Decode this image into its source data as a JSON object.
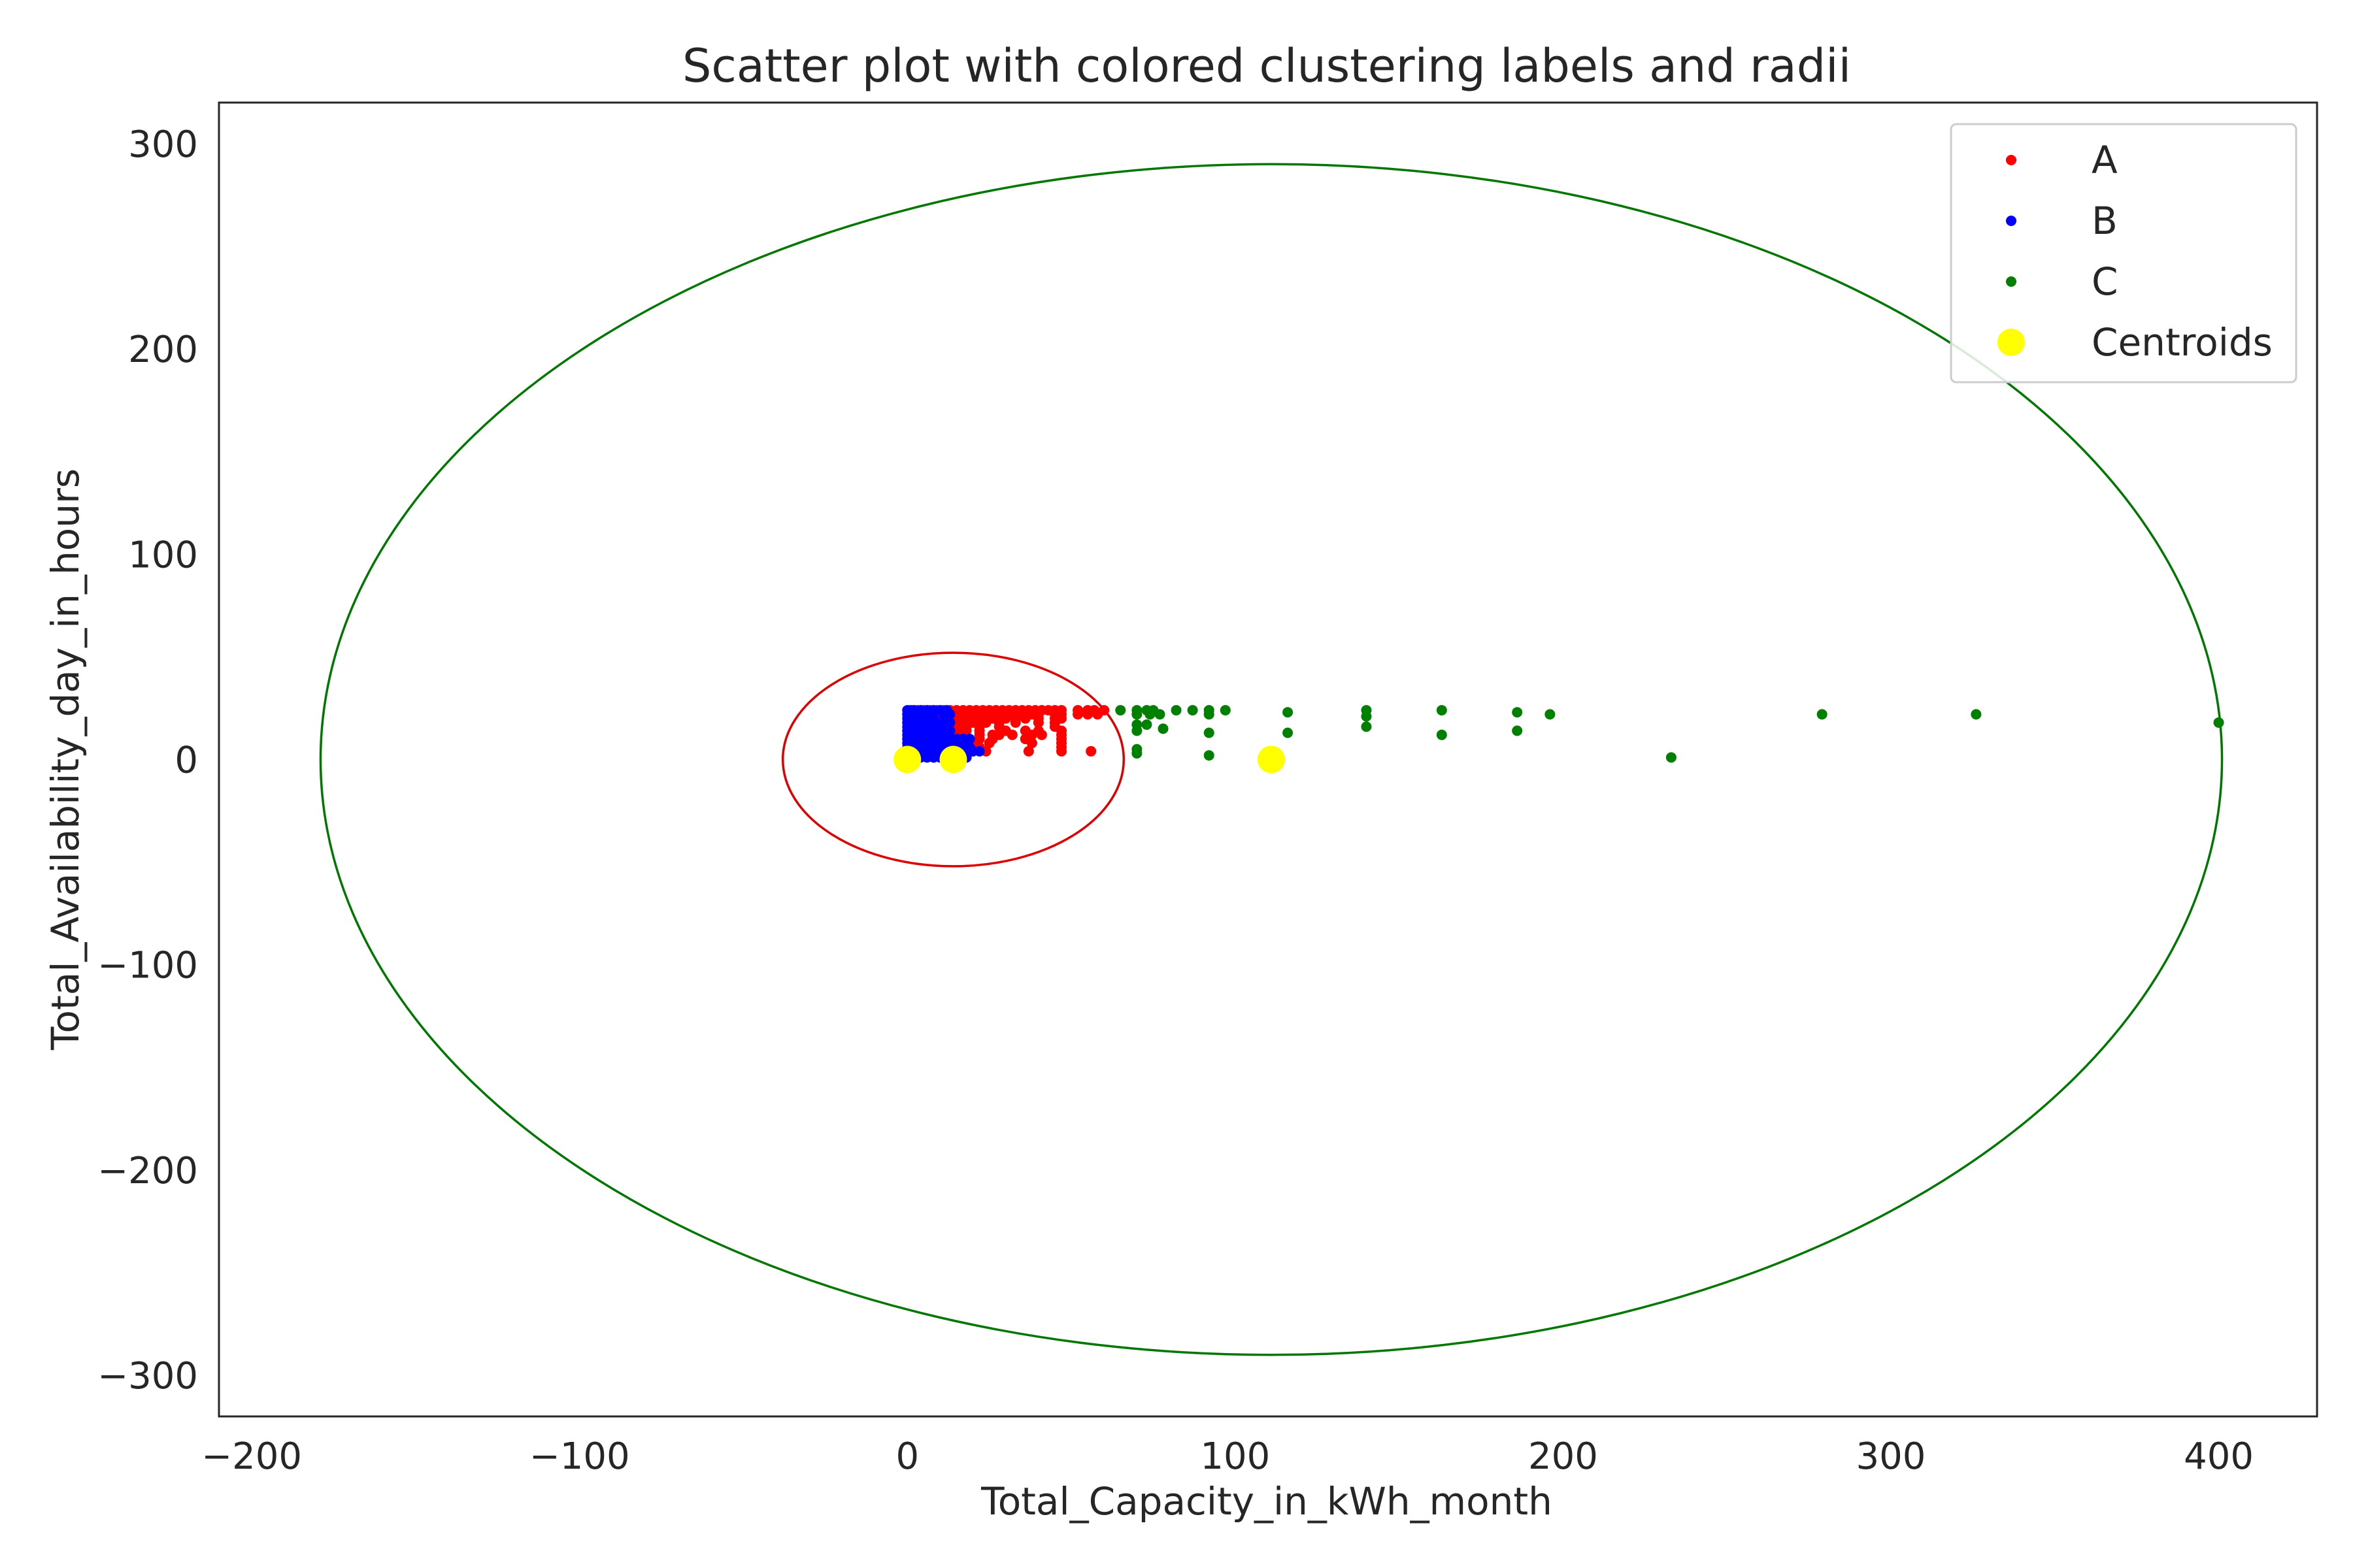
{
  "chart_data": {
    "type": "scatter",
    "title": "Scatter plot with colored clustering labels and radii",
    "xlabel": "Total_Capacity_in_kWh_month",
    "ylabel": "Total_Availability_day_in_hours",
    "xlim": [
      -210,
      430
    ],
    "ylim": [
      -320,
      320
    ],
    "xticks": [
      -200,
      -100,
      0,
      100,
      200,
      300,
      400
    ],
    "yticks": [
      -300,
      -200,
      -100,
      0,
      100,
      200,
      300
    ],
    "xtick_labels": [
      "−200",
      "−100",
      "0",
      "100",
      "200",
      "300",
      "400"
    ],
    "ytick_labels": [
      "−300",
      "−200",
      "−100",
      "0",
      "100",
      "200",
      "300"
    ],
    "grid": false,
    "legend_position": "top-right",
    "series": [
      {
        "name": "A",
        "color": "#ff0000",
        "points": [
          [
            3,
            24
          ],
          [
            5,
            24
          ],
          [
            7,
            24
          ],
          [
            9,
            24
          ],
          [
            11,
            24
          ],
          [
            13,
            24
          ],
          [
            15,
            24
          ],
          [
            17,
            24
          ],
          [
            19,
            24
          ],
          [
            21,
            24
          ],
          [
            23,
            24
          ],
          [
            25,
            24
          ],
          [
            27,
            24
          ],
          [
            29,
            24
          ],
          [
            31,
            24
          ],
          [
            33,
            24
          ],
          [
            35,
            24
          ],
          [
            37,
            24
          ],
          [
            39,
            24
          ],
          [
            41,
            24
          ],
          [
            43,
            24
          ],
          [
            45,
            24
          ],
          [
            47,
            24
          ],
          [
            52,
            24
          ],
          [
            55,
            24
          ],
          [
            57,
            24
          ],
          [
            60,
            24
          ],
          [
            9,
            22
          ],
          [
            12,
            22
          ],
          [
            14,
            22
          ],
          [
            16,
            22
          ],
          [
            18,
            22
          ],
          [
            20,
            22
          ],
          [
            22,
            22
          ],
          [
            24,
            22
          ],
          [
            26,
            22
          ],
          [
            28,
            22
          ],
          [
            30,
            22
          ],
          [
            32,
            22
          ],
          [
            34,
            22
          ],
          [
            36,
            22
          ],
          [
            38,
            22
          ],
          [
            40,
            22
          ],
          [
            45,
            22
          ],
          [
            47,
            22
          ],
          [
            52,
            22
          ],
          [
            55,
            22
          ],
          [
            58,
            22
          ],
          [
            10,
            20
          ],
          [
            14,
            20
          ],
          [
            16,
            20
          ],
          [
            18,
            20
          ],
          [
            20,
            20
          ],
          [
            22,
            20
          ],
          [
            24,
            20
          ],
          [
            26,
            20
          ],
          [
            28,
            20
          ],
          [
            30,
            20
          ],
          [
            33,
            20
          ],
          [
            36,
            20
          ],
          [
            40,
            20
          ],
          [
            45,
            20
          ],
          [
            47,
            20
          ],
          [
            14,
            18
          ],
          [
            16,
            18
          ],
          [
            18,
            18
          ],
          [
            20,
            18
          ],
          [
            22,
            18
          ],
          [
            24,
            18
          ],
          [
            28,
            18
          ],
          [
            33,
            18
          ],
          [
            40,
            18
          ],
          [
            45,
            18
          ],
          [
            14,
            16
          ],
          [
            16,
            16
          ],
          [
            18,
            16
          ],
          [
            22,
            16
          ],
          [
            28,
            16
          ],
          [
            45,
            16
          ],
          [
            14,
            14
          ],
          [
            16,
            14
          ],
          [
            18,
            14
          ],
          [
            22,
            14
          ],
          [
            30,
            14
          ],
          [
            36,
            14
          ],
          [
            40,
            14
          ],
          [
            47,
            14
          ],
          [
            14,
            12
          ],
          [
            16,
            12
          ],
          [
            22,
            12
          ],
          [
            26,
            12
          ],
          [
            28,
            12
          ],
          [
            32,
            12
          ],
          [
            38,
            12
          ],
          [
            41,
            12
          ],
          [
            47,
            12
          ],
          [
            22,
            10
          ],
          [
            26,
            10
          ],
          [
            36,
            10
          ],
          [
            47,
            10
          ],
          [
            20,
            8
          ],
          [
            25,
            8
          ],
          [
            38,
            8
          ],
          [
            47,
            8
          ],
          [
            22,
            6
          ],
          [
            47,
            6
          ],
          [
            24,
            4
          ],
          [
            37,
            4
          ],
          [
            47,
            4
          ],
          [
            56,
            4
          ]
        ]
      },
      {
        "name": "B",
        "color": "#0000ff",
        "points": [
          [
            0,
            24
          ],
          [
            1,
            24
          ],
          [
            2,
            24
          ],
          [
            4,
            24
          ],
          [
            6,
            24
          ],
          [
            8,
            24
          ],
          [
            10,
            24
          ],
          [
            12,
            24
          ],
          [
            0,
            22
          ],
          [
            1,
            22
          ],
          [
            3,
            22
          ],
          [
            5,
            22
          ],
          [
            7,
            22
          ],
          [
            11,
            22
          ],
          [
            13,
            22
          ],
          [
            0,
            20
          ],
          [
            2,
            20
          ],
          [
            4,
            20
          ],
          [
            6,
            20
          ],
          [
            8,
            20
          ],
          [
            12,
            20
          ],
          [
            0,
            18
          ],
          [
            1,
            18
          ],
          [
            3,
            18
          ],
          [
            5,
            18
          ],
          [
            7,
            18
          ],
          [
            9,
            18
          ],
          [
            11,
            18
          ],
          [
            13,
            18
          ],
          [
            0,
            16
          ],
          [
            2,
            16
          ],
          [
            4,
            16
          ],
          [
            6,
            16
          ],
          [
            8,
            16
          ],
          [
            10,
            16
          ],
          [
            12,
            16
          ],
          [
            0,
            14
          ],
          [
            1,
            14
          ],
          [
            3,
            14
          ],
          [
            5,
            14
          ],
          [
            7,
            14
          ],
          [
            9,
            14
          ],
          [
            11,
            14
          ],
          [
            13,
            14
          ],
          [
            0,
            12
          ],
          [
            2,
            12
          ],
          [
            4,
            12
          ],
          [
            6,
            12
          ],
          [
            8,
            12
          ],
          [
            10,
            12
          ],
          [
            12,
            12
          ],
          [
            0,
            10
          ],
          [
            1,
            10
          ],
          [
            3,
            10
          ],
          [
            5,
            10
          ],
          [
            7,
            10
          ],
          [
            9,
            10
          ],
          [
            11,
            10
          ],
          [
            13,
            10
          ],
          [
            15,
            10
          ],
          [
            17,
            10
          ],
          [
            19,
            10
          ],
          [
            0,
            8
          ],
          [
            2,
            8
          ],
          [
            4,
            8
          ],
          [
            6,
            8
          ],
          [
            8,
            8
          ],
          [
            10,
            8
          ],
          [
            12,
            8
          ],
          [
            14,
            8
          ],
          [
            16,
            8
          ],
          [
            18,
            8
          ],
          [
            0,
            6
          ],
          [
            1,
            6
          ],
          [
            3,
            6
          ],
          [
            5,
            6
          ],
          [
            7,
            6
          ],
          [
            9,
            6
          ],
          [
            11,
            6
          ],
          [
            13,
            6
          ],
          [
            15,
            6
          ],
          [
            17,
            6
          ],
          [
            19,
            6
          ],
          [
            0,
            4
          ],
          [
            2,
            4
          ],
          [
            4,
            4
          ],
          [
            6,
            4
          ],
          [
            8,
            4
          ],
          [
            10,
            4
          ],
          [
            12,
            4
          ],
          [
            14,
            4
          ],
          [
            16,
            4
          ],
          [
            18,
            4
          ],
          [
            20,
            4
          ],
          [
            22,
            4
          ],
          [
            0,
            2
          ],
          [
            1,
            2
          ],
          [
            3,
            2
          ],
          [
            5,
            2
          ],
          [
            7,
            2
          ],
          [
            9,
            2
          ],
          [
            11,
            2
          ],
          [
            13,
            2
          ],
          [
            15,
            2
          ],
          [
            17,
            2
          ],
          [
            0,
            1
          ],
          [
            2,
            1
          ],
          [
            4,
            1
          ],
          [
            6,
            1
          ],
          [
            8,
            1
          ],
          [
            10,
            1
          ],
          [
            12,
            1
          ],
          [
            14,
            1
          ],
          [
            16,
            1
          ],
          [
            18,
            1
          ]
        ]
      },
      {
        "name": "C",
        "color": "#008000",
        "points": [
          [
            65,
            24
          ],
          [
            70,
            24
          ],
          [
            73,
            24
          ],
          [
            75,
            24
          ],
          [
            82,
            24
          ],
          [
            87,
            24
          ],
          [
            92,
            24
          ],
          [
            97,
            24
          ],
          [
            116,
            23
          ],
          [
            140,
            24
          ],
          [
            163,
            24
          ],
          [
            186,
            23
          ],
          [
            196,
            22
          ],
          [
            279,
            22
          ],
          [
            326,
            22
          ],
          [
            400,
            18
          ],
          [
            70,
            22
          ],
          [
            74,
            22
          ],
          [
            77,
            22
          ],
          [
            92,
            22
          ],
          [
            140,
            21
          ],
          [
            70,
            17
          ],
          [
            73,
            17
          ],
          [
            78,
            15
          ],
          [
            70,
            14
          ],
          [
            92,
            13
          ],
          [
            116,
            13
          ],
          [
            140,
            16
          ],
          [
            163,
            12
          ],
          [
            186,
            14
          ],
          [
            70,
            5
          ],
          [
            70,
            3
          ],
          [
            92,
            2
          ],
          [
            233,
            1
          ]
        ]
      }
    ],
    "centroids": {
      "name": "Centroids",
      "color": "#ffff00",
      "points": [
        [
          0,
          0
        ],
        [
          14,
          0
        ],
        [
          111,
          0
        ]
      ]
    },
    "radii": [
      {
        "cluster": "A",
        "color": "#dd0000",
        "center": [
          14,
          0
        ],
        "rx": 52,
        "ry": 52
      },
      {
        "cluster": "C",
        "color": "#007700",
        "center": [
          111,
          0
        ],
        "rx": 290,
        "ry": 290
      }
    ]
  }
}
